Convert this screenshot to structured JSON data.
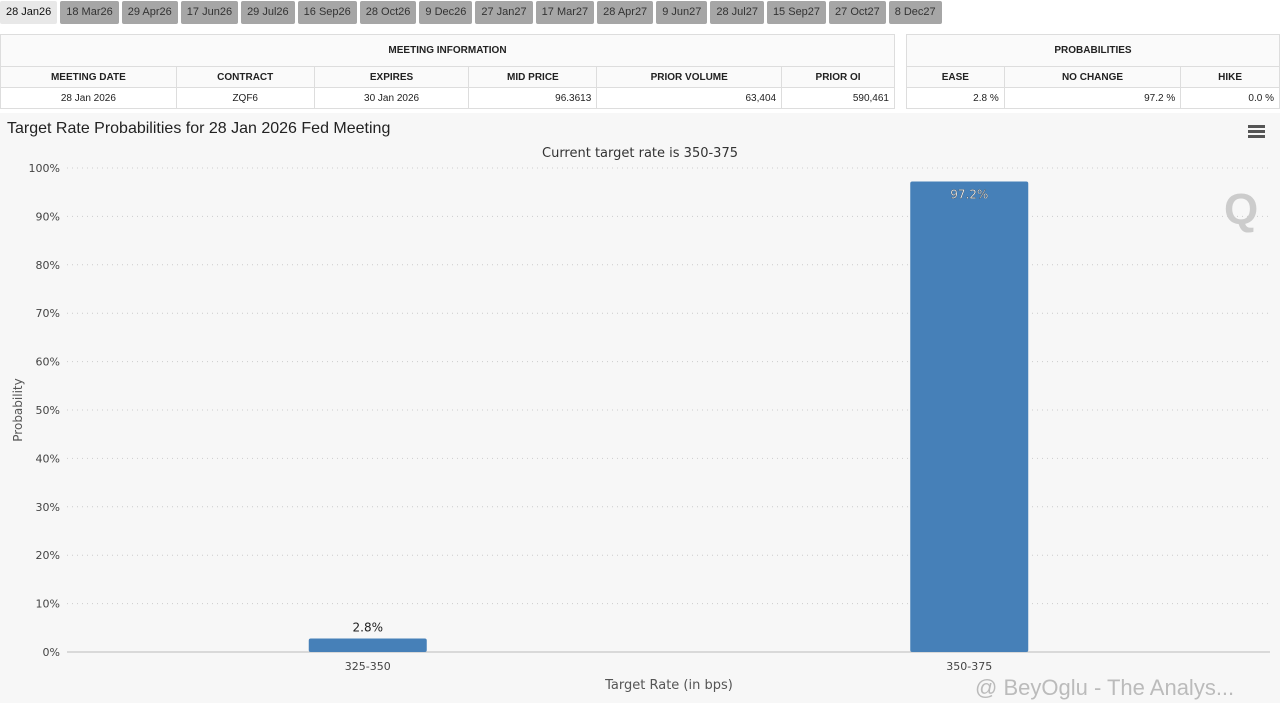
{
  "tabs": [
    "28 Jan26",
    "18 Mar26",
    "29 Apr26",
    "17 Jun26",
    "29 Jul26",
    "16 Sep26",
    "28 Oct26",
    "9 Dec26",
    "27 Jan27",
    "17 Mar27",
    "28 Apr27",
    "9 Jun27",
    "28 Jul27",
    "15 Sep27",
    "27 Oct27",
    "8 Dec27"
  ],
  "meeting": {
    "title": "MEETING INFORMATION",
    "headers": [
      "MEETING DATE",
      "CONTRACT",
      "EXPIRES",
      "MID PRICE",
      "PRIOR VOLUME",
      "PRIOR OI"
    ],
    "values": [
      "28 Jan 2026",
      "ZQF6",
      "30 Jan 2026",
      "96.3613",
      "63,404",
      "590,461"
    ]
  },
  "probs": {
    "title": "PROBABILITIES",
    "headers": [
      "EASE",
      "NO CHANGE",
      "HIKE"
    ],
    "values": [
      "2.8 %",
      "97.2 %",
      "0.0 %"
    ]
  },
  "watermark": "@ BeyOglu - The Analys...",
  "chart_data": {
    "type": "bar",
    "title": "Target Rate Probabilities for 28 Jan 2026 Fed Meeting",
    "subtitle": "Current target rate is 350-375",
    "xlabel": "Target Rate (in bps)",
    "ylabel": "Probability",
    "categories": [
      "325-350",
      "350-375"
    ],
    "values": [
      2.8,
      97.2
    ],
    "data_labels": [
      "2.8%",
      "97.2%"
    ],
    "ylim": [
      0,
      100
    ],
    "yticks": [
      "0%",
      "10%",
      "20%",
      "30%",
      "40%",
      "50%",
      "60%",
      "70%",
      "80%",
      "90%",
      "100%"
    ],
    "grid": true,
    "color": "#4680b8"
  }
}
